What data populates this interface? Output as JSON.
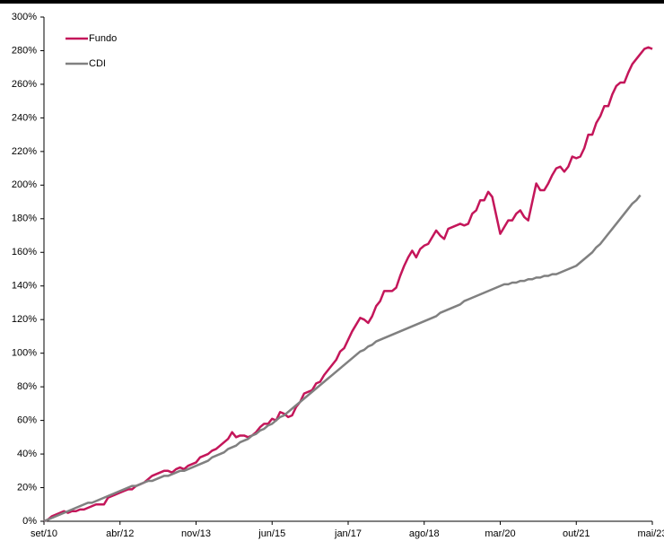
{
  "chart_data": {
    "type": "line",
    "categories": [
      "set/10",
      null,
      null,
      null,
      null,
      null,
      null,
      null,
      null,
      null,
      null,
      null,
      null,
      null,
      null,
      null,
      null,
      null,
      null,
      "abr/12",
      null,
      null,
      null,
      null,
      null,
      null,
      null,
      null,
      null,
      null,
      null,
      null,
      null,
      null,
      null,
      null,
      null,
      null,
      "nov/13",
      null,
      null,
      null,
      null,
      null,
      null,
      null,
      null,
      null,
      null,
      null,
      null,
      null,
      null,
      null,
      null,
      null,
      null,
      "jun/15",
      null,
      null,
      null,
      null,
      null,
      null,
      null,
      null,
      null,
      null,
      null,
      null,
      null,
      null,
      null,
      null,
      null,
      null,
      "jan/17",
      null,
      null,
      null,
      null,
      null,
      null,
      null,
      null,
      null,
      null,
      null,
      null,
      null,
      null,
      null,
      null,
      null,
      null,
      "ago/18",
      null,
      null,
      null,
      null,
      null,
      null,
      null,
      null,
      null,
      null,
      null,
      null,
      null,
      null,
      null,
      null,
      null,
      null,
      "mar/20",
      null,
      null,
      null,
      null,
      null,
      null,
      null,
      null,
      null,
      null,
      null,
      null,
      null,
      null,
      null,
      null,
      null,
      null,
      "out/21",
      null,
      null,
      null,
      null,
      null,
      null,
      null,
      null,
      null,
      null,
      null,
      null,
      null,
      null,
      null,
      null,
      null,
      null,
      "mai/23"
    ],
    "series": [
      {
        "name": "Fundo",
        "color": "#c4165a",
        "values": [
          0,
          1,
          3,
          4,
          5,
          6,
          5,
          6,
          6,
          7,
          7,
          8,
          9,
          10,
          10,
          10,
          14,
          15,
          16,
          17,
          18,
          19,
          19,
          21,
          22,
          23,
          25,
          27,
          28,
          29,
          30,
          30,
          29,
          31,
          32,
          31,
          33,
          34,
          35,
          38,
          39,
          40,
          42,
          43,
          45,
          47,
          49,
          53,
          50,
          51,
          51,
          50,
          51,
          53,
          56,
          58,
          58,
          61,
          60,
          65,
          64,
          62,
          63,
          68,
          71,
          76,
          77,
          78,
          82,
          83,
          87,
          90,
          93,
          96,
          101,
          103,
          108,
          113,
          117,
          121,
          120,
          118,
          122,
          128,
          131,
          137,
          137,
          137,
          139,
          146,
          152,
          157,
          161,
          157,
          162,
          164,
          165,
          169,
          173,
          170,
          168,
          174,
          175,
          176,
          177,
          176,
          177,
          183,
          185,
          191,
          191,
          196,
          193,
          182,
          171,
          175,
          179,
          179,
          183,
          185,
          181,
          179,
          190,
          201,
          197,
          197,
          201,
          206,
          210,
          211,
          208,
          211,
          217,
          216,
          217,
          222,
          230,
          230,
          237,
          241,
          247,
          247,
          254,
          259,
          261,
          261,
          267,
          272,
          275,
          278,
          281,
          282,
          281
        ]
      },
      {
        "name": "CDI",
        "color": "#808080",
        "values": [
          0,
          1,
          2,
          3,
          4,
          5,
          6,
          7,
          8,
          9,
          10,
          11,
          11,
          12,
          13,
          14,
          15,
          16,
          17,
          18,
          19,
          20,
          21,
          21,
          22,
          23,
          24,
          24,
          25,
          26,
          27,
          27,
          28,
          29,
          30,
          30,
          31,
          32,
          33,
          34,
          35,
          36,
          38,
          39,
          40,
          41,
          43,
          44,
          45,
          47,
          48,
          49,
          51,
          52,
          54,
          55,
          57,
          58,
          60,
          62,
          63,
          65,
          67,
          69,
          71,
          73,
          75,
          77,
          79,
          81,
          83,
          85,
          87,
          89,
          91,
          93,
          95,
          97,
          99,
          101,
          102,
          104,
          105,
          107,
          108,
          109,
          110,
          111,
          112,
          113,
          114,
          115,
          116,
          117,
          118,
          119,
          120,
          121,
          122,
          124,
          125,
          126,
          127,
          128,
          129,
          131,
          132,
          133,
          134,
          135,
          136,
          137,
          138,
          139,
          140,
          141,
          141,
          142,
          142,
          143,
          143,
          144,
          144,
          145,
          145,
          146,
          146,
          147,
          147,
          148,
          149,
          150,
          151,
          152,
          154,
          156,
          158,
          160,
          163,
          165,
          168,
          171,
          174,
          177,
          180,
          183,
          186,
          189,
          191,
          194,
          null,
          null,
          null
        ]
      }
    ],
    "ylim": [
      0,
      300
    ],
    "yticks": [
      {
        "value": 0,
        "label": "0%"
      },
      {
        "value": 20,
        "label": "20%"
      },
      {
        "value": 40,
        "label": "40%"
      },
      {
        "value": 60,
        "label": "60%"
      },
      {
        "value": 80,
        "label": "80%"
      },
      {
        "value": 100,
        "label": "100%"
      },
      {
        "value": 120,
        "label": "120%"
      },
      {
        "value": 140,
        "label": "140%"
      },
      {
        "value": 160,
        "label": "160%"
      },
      {
        "value": 180,
        "label": "180%"
      },
      {
        "value": 200,
        "label": "200%"
      },
      {
        "value": 220,
        "label": "220%"
      },
      {
        "value": 240,
        "label": "240%"
      },
      {
        "value": 260,
        "label": "260%"
      },
      {
        "value": 280,
        "label": "280%"
      },
      {
        "value": 300,
        "label": "300%"
      }
    ],
    "grid": false,
    "legend": "top-left"
  }
}
